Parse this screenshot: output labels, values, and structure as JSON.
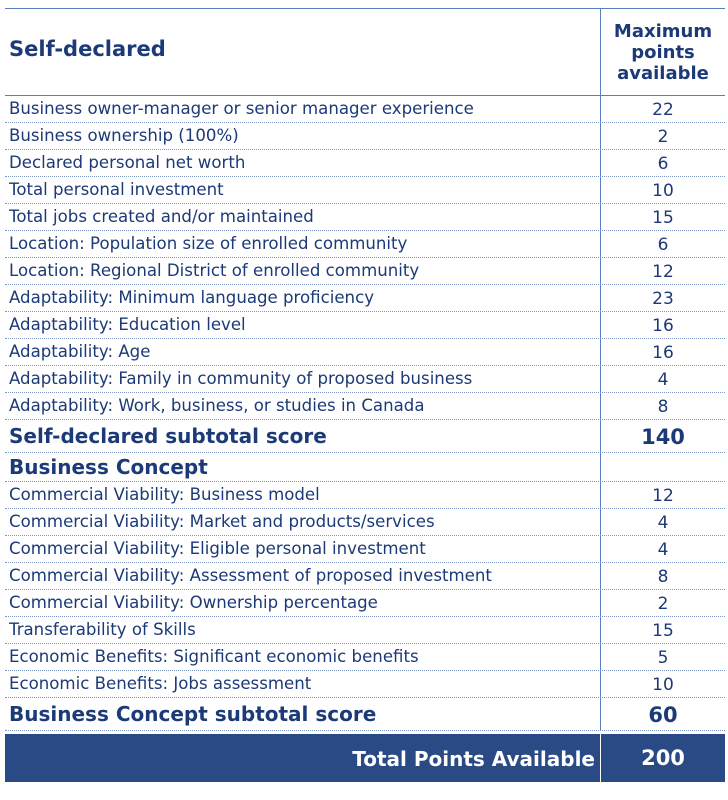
{
  "header": {
    "section_title": "Self-declared",
    "points_header_line1": "Maximum",
    "points_header_line2": "points",
    "points_header_line3": "available"
  },
  "self_declared": {
    "rows": [
      {
        "label": "Business owner-manager or senior manager experience",
        "points": "22"
      },
      {
        "label": "Business ownership (100%)",
        "points": "2"
      },
      {
        "label": "Declared personal net worth",
        "points": "6"
      },
      {
        "label": "Total personal investment",
        "points": "10"
      },
      {
        "label": "Total jobs created and/or maintained",
        "points": "15"
      },
      {
        "label": "Location: Population size of enrolled community",
        "points": "6"
      },
      {
        "label": "Location: Regional District of enrolled community",
        "points": "12"
      },
      {
        "label": "Adaptability: Minimum language proficiency",
        "points": "23"
      },
      {
        "label": "Adaptability: Education level",
        "points": "16"
      },
      {
        "label": "Adaptability: Age",
        "points": "16"
      },
      {
        "label": "Adaptability: Family in community of proposed business",
        "points": "4"
      },
      {
        "label": "Adaptability: Work, business, or studies in Canada",
        "points": "8"
      }
    ],
    "subtotal_label": "Self-declared subtotal score",
    "subtotal_points": "140"
  },
  "business_concept": {
    "section_title": "Business Concept",
    "rows": [
      {
        "label": "Commercial Viability: Business model",
        "points": "12"
      },
      {
        "label": "Commercial Viability: Market and products/services",
        "points": "4"
      },
      {
        "label": "Commercial Viability: Eligible personal investment",
        "points": "4"
      },
      {
        "label": "Commercial Viability: Assessment of proposed investment",
        "points": "8"
      },
      {
        "label": "Commercial Viability: Ownership percentage",
        "points": "2"
      },
      {
        "label": "Transferability of Skills",
        "points": "15"
      },
      {
        "label": "Economic Benefits: Significant economic benefits",
        "points": "5"
      },
      {
        "label": "Economic Benefits: Jobs assessment",
        "points": "10"
      }
    ],
    "subtotal_label": "Business Concept subtotal score",
    "subtotal_points": "60"
  },
  "total": {
    "label": "Total Points Available",
    "points": "200"
  }
}
